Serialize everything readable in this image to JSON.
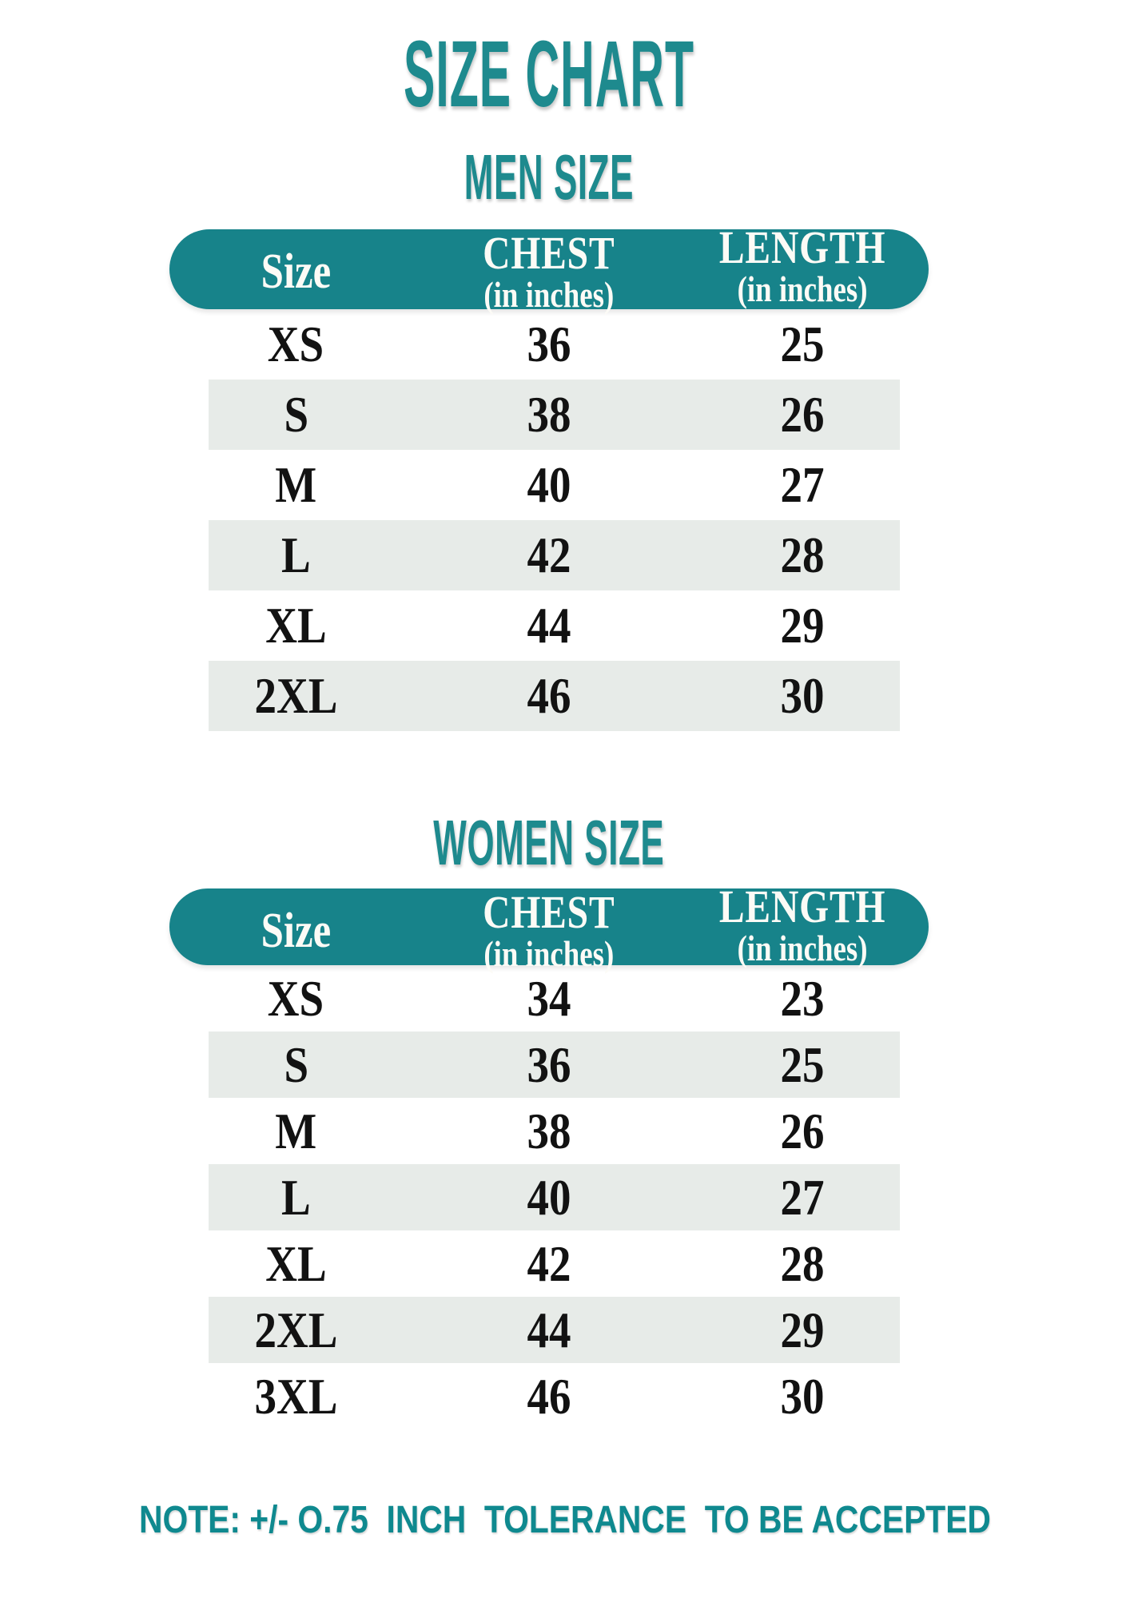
{
  "page": {
    "title": "SIZE CHART",
    "note": "NOTE: +/- O.75  INCH  TOLERANCE  TO BE ACCEPTED"
  },
  "colors": {
    "header_pill_teal": "#17838A",
    "title_teal": "#1E8A8E",
    "note_teal": "#0F898F",
    "stripe_gray": "#E7EBE8",
    "header_text": "#FCFBF6",
    "body_text": "#121212",
    "background": "#FFFFFF"
  },
  "tables": [
    {
      "section_title": "MEN SIZE",
      "columns": [
        {
          "label": "Size",
          "sub": ""
        },
        {
          "label": "CHEST",
          "sub": "(in inches)"
        },
        {
          "label": "LENGTH",
          "sub": "(in inches)"
        }
      ],
      "rows": [
        {
          "size": "XS",
          "chest": "36",
          "length": "25"
        },
        {
          "size": "S",
          "chest": "38",
          "length": "26"
        },
        {
          "size": "M",
          "chest": "40",
          "length": "27"
        },
        {
          "size": "L",
          "chest": "42",
          "length": "28"
        },
        {
          "size": "XL",
          "chest": "44",
          "length": "29"
        },
        {
          "size": "2XL",
          "chest": "46",
          "length": "30"
        }
      ]
    },
    {
      "section_title": "WOMEN SIZE",
      "columns": [
        {
          "label": "Size",
          "sub": ""
        },
        {
          "label": "CHEST",
          "sub": "(in inches)"
        },
        {
          "label": "LENGTH",
          "sub": "(in inches)"
        }
      ],
      "rows": [
        {
          "size": "XS",
          "chest": "34",
          "length": "23"
        },
        {
          "size": "S",
          "chest": "36",
          "length": "25"
        },
        {
          "size": "M",
          "chest": "38",
          "length": "26"
        },
        {
          "size": "L",
          "chest": "40",
          "length": "27"
        },
        {
          "size": "XL",
          "chest": "42",
          "length": "28"
        },
        {
          "size": "2XL",
          "chest": "44",
          "length": "29"
        },
        {
          "size": "3XL",
          "chest": "46",
          "length": "30"
        }
      ]
    }
  ]
}
